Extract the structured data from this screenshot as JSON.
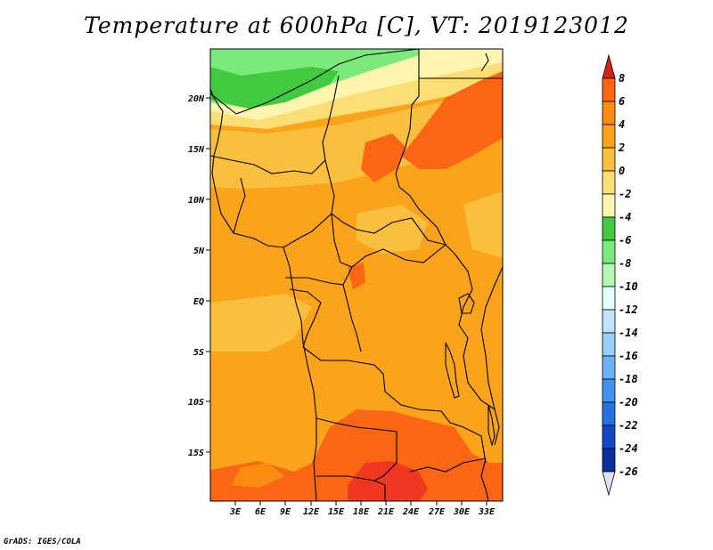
{
  "title": "Temperature at 600hPa [C], VT: 2019123012",
  "lat_labels": [
    "20N",
    "15N",
    "10N",
    "5N",
    "EQ",
    "5S",
    "10S",
    "15S"
  ],
  "lon_labels": [
    "3E",
    "6E",
    "9E",
    "12E",
    "15E",
    "18E",
    "21E",
    "24E",
    "27E",
    "30E",
    "33E"
  ],
  "colorbar": {
    "labels": [
      "8",
      "6",
      "4",
      "2",
      "0",
      "-2",
      "-4",
      "-6",
      "-8",
      "-10",
      "-12",
      "-14",
      "-16",
      "-18",
      "-20",
      "-22",
      "-24",
      "-26"
    ],
    "colors": [
      "#f0371f",
      "#fa6614",
      "#fa8c12",
      "#fba31a",
      "#fbbf3e",
      "#fdde75",
      "#fef6b0",
      "#3fca3f",
      "#7bea7b",
      "#b4f8b4",
      "#e5ffff",
      "#bfe4fb",
      "#98cef8",
      "#6cb1f4",
      "#4291ee",
      "#2471e0",
      "#1448c8",
      "#0a2ea0",
      "#08146d"
    ],
    "top_arrow_color": "#d62018",
    "bottom_arrow_color": "#e0e0f4"
  },
  "field_colors": {
    "hot": "#f0371f",
    "warm": "#fa6614",
    "mid": "#fa8c12",
    "base": "#fba31a",
    "light": "#fbbf3e",
    "pale": "#fdde75",
    "cream": "#fef6b0",
    "green": "#3fca3f",
    "lightgreen": "#7bea7b"
  },
  "credit": "GrADS: IGES/COLA"
}
